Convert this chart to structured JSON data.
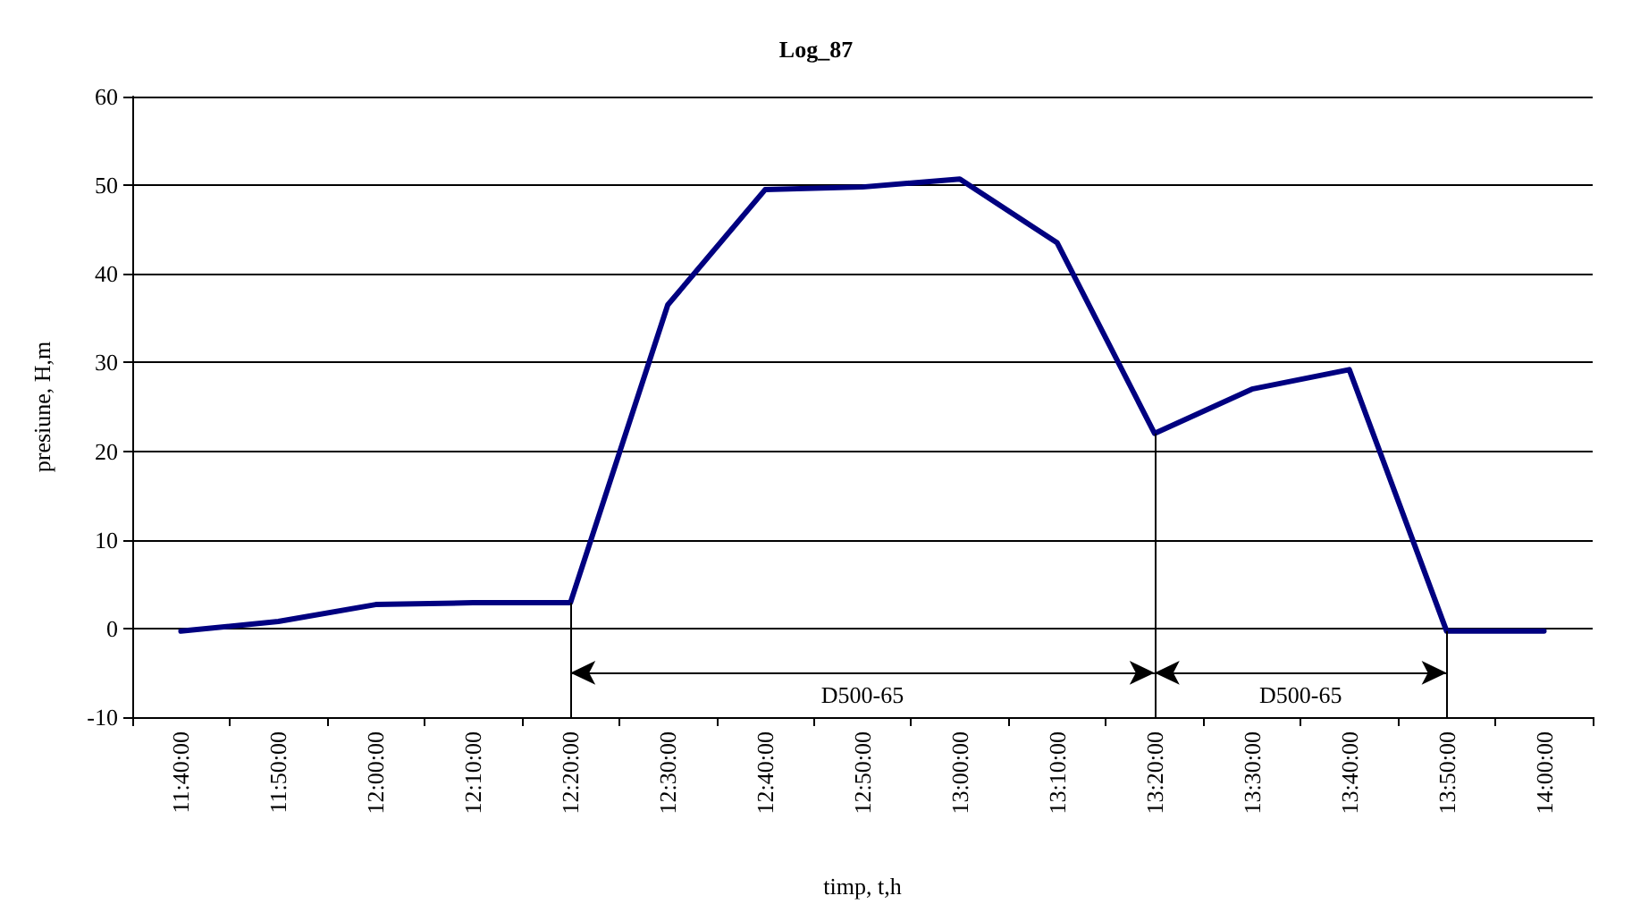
{
  "chart_data": {
    "type": "line",
    "title": "Log_87",
    "xlabel": "timp, t,h",
    "ylabel": "presiune, H,m",
    "categories": [
      "11:40:00",
      "11:50:00",
      "12:00:00",
      "12:10:00",
      "12:20:00",
      "12:30:00",
      "12:40:00",
      "12:50:00",
      "13:00:00",
      "13:10:00",
      "13:20:00",
      "13:30:00",
      "13:40:00",
      "13:50:00",
      "14:00:00"
    ],
    "series": [
      {
        "color": "#000080",
        "values": [
          -0.3,
          0.8,
          2.7,
          2.9,
          2.9,
          36.5,
          49.5,
          49.8,
          50.7,
          43.5,
          22,
          27,
          29.2,
          -0.3,
          -0.3
        ]
      }
    ],
    "ylim": [
      -10,
      60
    ],
    "yticks": [
      -10,
      0,
      10,
      20,
      30,
      40,
      50,
      60
    ],
    "grid": "y",
    "legend": false,
    "marker": "none",
    "line_style": "solid",
    "ref_lines": [
      {
        "axis": "x",
        "value": "12:20:00",
        "color": "#000000"
      },
      {
        "axis": "x",
        "value": "13:20:00",
        "color": "#000000"
      },
      {
        "axis": "x",
        "value": "13:50:00",
        "color": "#000000"
      }
    ],
    "annotations": [
      "D500-65",
      "D500-65"
    ]
  }
}
